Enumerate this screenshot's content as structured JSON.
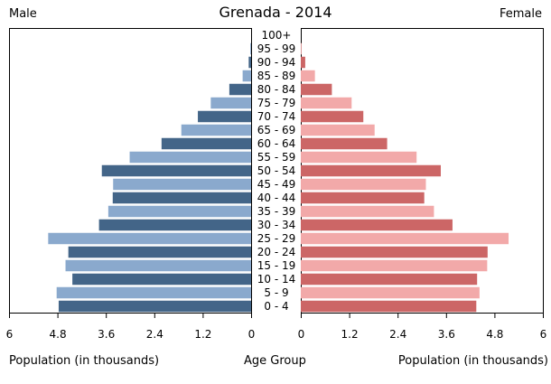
{
  "chart_data": {
    "type": "bar",
    "title": "Grenada - 2014",
    "left_label": "Male",
    "right_label": "Female",
    "xlabel_left": "Population (in thousands)",
    "xlabel_center": "Age Group",
    "xlabel_right": "Population (in thousands)",
    "xlim": [
      0,
      6
    ],
    "left_ticks": [
      "6",
      "4.8",
      "3.6",
      "2.4",
      "1.2",
      "0"
    ],
    "right_ticks": [
      "0",
      "1.2",
      "2.4",
      "3.6",
      "4.8",
      "6"
    ],
    "tick_values": [
      0,
      1.2,
      2.4,
      3.6,
      4.8,
      6
    ],
    "categories": [
      "100+",
      "95 - 99",
      "90 - 94",
      "85 - 89",
      "80 - 84",
      "75 - 79",
      "70 - 74",
      "65 - 69",
      "60 - 64",
      "55 - 59",
      "50 - 54",
      "45 - 49",
      "40 - 44",
      "35 - 39",
      "30 - 34",
      "25 - 29",
      "20 - 24",
      "15 - 19",
      "10 - 14",
      "5 - 9",
      "0 - 4"
    ],
    "series": [
      {
        "name": "Male",
        "values": [
          0.0,
          0.02,
          0.06,
          0.21,
          0.54,
          1.0,
          1.32,
          1.73,
          2.22,
          3.01,
          3.7,
          3.42,
          3.43,
          3.54,
          3.77,
          5.03,
          4.53,
          4.6,
          4.43,
          4.82,
          4.77
        ]
      },
      {
        "name": "Female",
        "values": [
          0.0,
          0.02,
          0.11,
          0.35,
          0.77,
          1.26,
          1.55,
          1.83,
          2.14,
          2.87,
          3.47,
          3.1,
          3.06,
          3.3,
          3.76,
          5.15,
          4.63,
          4.62,
          4.37,
          4.43,
          4.35
        ]
      }
    ],
    "colors": {
      "male_dark": "#436588",
      "male_light": "#8aa9cd",
      "female_dark": "#cc6666",
      "female_light": "#f2a9a9"
    }
  }
}
